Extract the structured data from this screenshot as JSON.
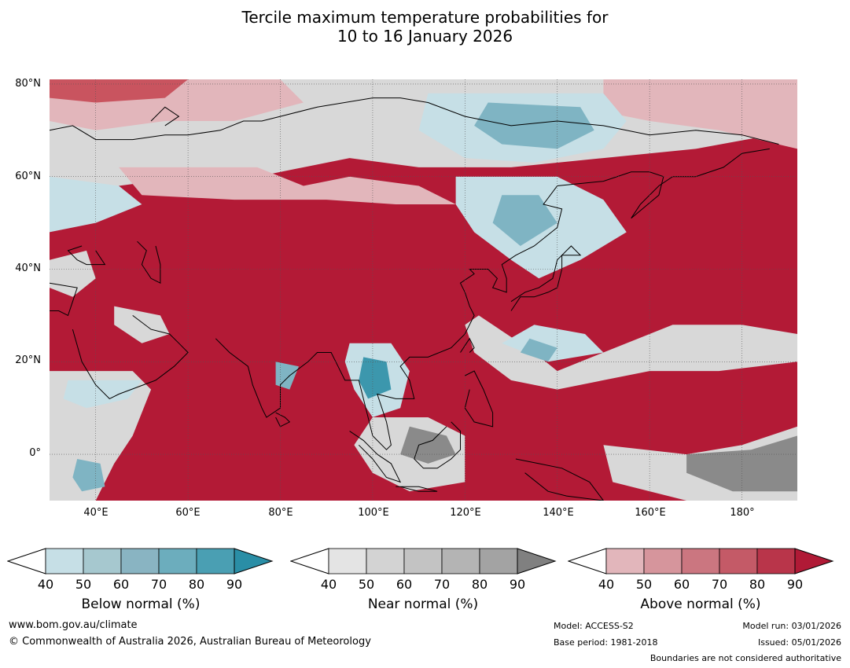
{
  "title_line1": "Tercile maximum temperature probabilities for",
  "title_line2": "10 to 16 January 2026",
  "map": {
    "lat_labels": [
      "80°N",
      "60°N",
      "40°N",
      "20°N",
      "0°"
    ],
    "lon_labels": [
      "40°E",
      "60°E",
      "80°E",
      "100°E",
      "120°E",
      "140°E",
      "160°E",
      "180°"
    ],
    "lon_range": [
      30,
      192
    ],
    "lat_range": [
      -10,
      81
    ],
    "colors": {
      "above_strong": "#b31a36",
      "above_mid": "#c9545f",
      "above_light": "#e2b6bb",
      "below_light": "#c6dfe6",
      "below_mid": "#7fb4c3",
      "below_strong": "#3c97ad",
      "near_light": "#d8d8d8",
      "near_dark": "#8a8a8a",
      "background": "#eeeeee"
    }
  },
  "colorbars": [
    {
      "title": "Below normal (%)",
      "ticks": [
        "40",
        "50",
        "60",
        "70",
        "80",
        "90"
      ],
      "colors": [
        "#ffffff",
        "#c6dfe6",
        "#a6c8cf",
        "#89b4c2",
        "#6cadbd",
        "#4a9fb3",
        "#2a8ea6"
      ]
    },
    {
      "title": "Near normal (%)",
      "ticks": [
        "40",
        "50",
        "60",
        "70",
        "80",
        "90"
      ],
      "colors": [
        "#ffffff",
        "#e4e4e4",
        "#d3d3d3",
        "#c3c3c3",
        "#b4b4b4",
        "#a3a3a3",
        "#808080"
      ]
    },
    {
      "title": "Above normal (%)",
      "ticks": [
        "40",
        "50",
        "60",
        "70",
        "80",
        "90"
      ],
      "colors": [
        "#ffffff",
        "#e2b6bb",
        "#d6959c",
        "#cb7680",
        "#c45a67",
        "#b9354a",
        "#b01a36"
      ]
    }
  ],
  "footer": {
    "website": "www.bom.gov.au/climate",
    "copyright": "© Commonwealth of Australia 2026, Australian Bureau of Meteorology",
    "model": "Model: ACCESS-S2",
    "base_period": "Base period: 1981-2018",
    "model_run": "Model run: 03/01/2026",
    "issued": "Issued: 05/01/2026",
    "disclaimer": "Boundaries are not considered authoritative"
  }
}
